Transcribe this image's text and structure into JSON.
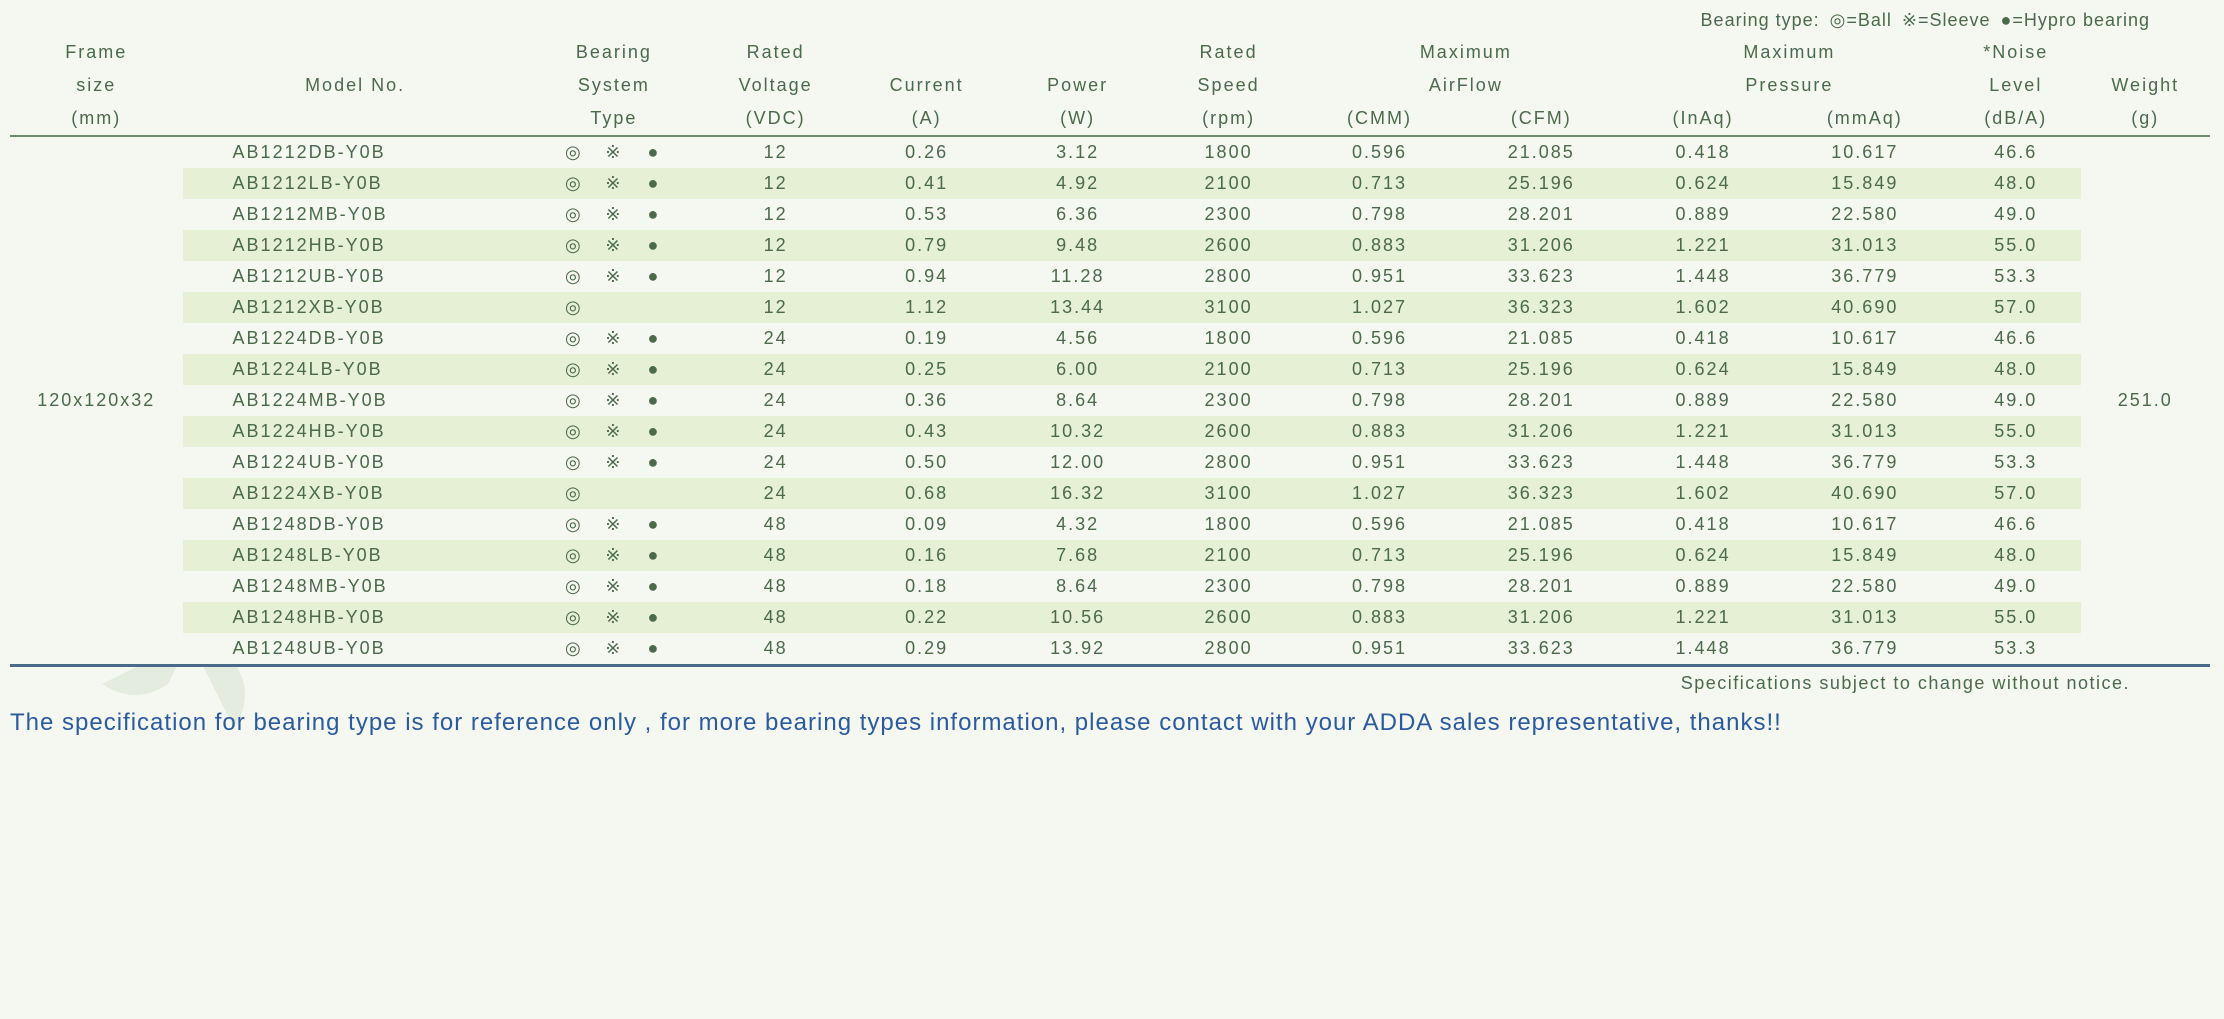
{
  "legend": {
    "prefix": "Bearing type:",
    "ball": "◎=Ball",
    "sleeve": "※=Sleeve",
    "hypro": "●=Hypro bearing"
  },
  "headers": {
    "frame1": "Frame",
    "frame2": "size",
    "frame3": "(mm)",
    "model": "Model No.",
    "bearing1": "Bearing",
    "bearing2": "System",
    "bearing3": "Type",
    "voltage1": "Rated",
    "voltage2": "Voltage",
    "voltage3": "(VDC)",
    "current1": "Current",
    "current2": "(A)",
    "power1": "Power",
    "power2": "(W)",
    "speed1": "Rated",
    "speed2": "Speed",
    "speed3": "(rpm)",
    "airflow1": "Maximum",
    "airflow2": "AirFlow",
    "cmm": "(CMM)",
    "cfm": "(CFM)",
    "pressure1": "Maximum",
    "pressure2": "Pressure",
    "inaq": "(InAq)",
    "mmaq": "(mmAq)",
    "noise1": "*Noise",
    "noise2": "Level",
    "noise3": "(dB/A)",
    "weight1": "Weight",
    "weight2": "(g)"
  },
  "frame_size": "120x120x32",
  "weight": "251.0",
  "rows": [
    {
      "model": "AB1212DB-Y0B",
      "ball": true,
      "sleeve": true,
      "hypro": true,
      "v": "12",
      "a": "0.26",
      "w": "3.12",
      "rpm": "1800",
      "cmm": "0.596",
      "cfm": "21.085",
      "inaq": "0.418",
      "mmaq": "10.617",
      "db": "46.6"
    },
    {
      "model": "AB1212LB-Y0B",
      "ball": true,
      "sleeve": true,
      "hypro": true,
      "v": "12",
      "a": "0.41",
      "w": "4.92",
      "rpm": "2100",
      "cmm": "0.713",
      "cfm": "25.196",
      "inaq": "0.624",
      "mmaq": "15.849",
      "db": "48.0"
    },
    {
      "model": "AB1212MB-Y0B",
      "ball": true,
      "sleeve": true,
      "hypro": true,
      "v": "12",
      "a": "0.53",
      "w": "6.36",
      "rpm": "2300",
      "cmm": "0.798",
      "cfm": "28.201",
      "inaq": "0.889",
      "mmaq": "22.580",
      "db": "49.0"
    },
    {
      "model": "AB1212HB-Y0B",
      "ball": true,
      "sleeve": true,
      "hypro": true,
      "v": "12",
      "a": "0.79",
      "w": "9.48",
      "rpm": "2600",
      "cmm": "0.883",
      "cfm": "31.206",
      "inaq": "1.221",
      "mmaq": "31.013",
      "db": "55.0"
    },
    {
      "model": "AB1212UB-Y0B",
      "ball": true,
      "sleeve": true,
      "hypro": true,
      "v": "12",
      "a": "0.94",
      "w": "11.28",
      "rpm": "2800",
      "cmm": "0.951",
      "cfm": "33.623",
      "inaq": "1.448",
      "mmaq": "36.779",
      "db": "53.3"
    },
    {
      "model": "AB1212XB-Y0B",
      "ball": true,
      "sleeve": false,
      "hypro": false,
      "v": "12",
      "a": "1.12",
      "w": "13.44",
      "rpm": "3100",
      "cmm": "1.027",
      "cfm": "36.323",
      "inaq": "1.602",
      "mmaq": "40.690",
      "db": "57.0"
    },
    {
      "model": "AB1224DB-Y0B",
      "ball": true,
      "sleeve": true,
      "hypro": true,
      "v": "24",
      "a": "0.19",
      "w": "4.56",
      "rpm": "1800",
      "cmm": "0.596",
      "cfm": "21.085",
      "inaq": "0.418",
      "mmaq": "10.617",
      "db": "46.6"
    },
    {
      "model": "AB1224LB-Y0B",
      "ball": true,
      "sleeve": true,
      "hypro": true,
      "v": "24",
      "a": "0.25",
      "w": "6.00",
      "rpm": "2100",
      "cmm": "0.713",
      "cfm": "25.196",
      "inaq": "0.624",
      "mmaq": "15.849",
      "db": "48.0"
    },
    {
      "model": "AB1224MB-Y0B",
      "ball": true,
      "sleeve": true,
      "hypro": true,
      "v": "24",
      "a": "0.36",
      "w": "8.64",
      "rpm": "2300",
      "cmm": "0.798",
      "cfm": "28.201",
      "inaq": "0.889",
      "mmaq": "22.580",
      "db": "49.0"
    },
    {
      "model": "AB1224HB-Y0B",
      "ball": true,
      "sleeve": true,
      "hypro": true,
      "v": "24",
      "a": "0.43",
      "w": "10.32",
      "rpm": "2600",
      "cmm": "0.883",
      "cfm": "31.206",
      "inaq": "1.221",
      "mmaq": "31.013",
      "db": "55.0"
    },
    {
      "model": "AB1224UB-Y0B",
      "ball": true,
      "sleeve": true,
      "hypro": true,
      "v": "24",
      "a": "0.50",
      "w": "12.00",
      "rpm": "2800",
      "cmm": "0.951",
      "cfm": "33.623",
      "inaq": "1.448",
      "mmaq": "36.779",
      "db": "53.3"
    },
    {
      "model": "AB1224XB-Y0B",
      "ball": true,
      "sleeve": false,
      "hypro": false,
      "v": "24",
      "a": "0.68",
      "w": "16.32",
      "rpm": "3100",
      "cmm": "1.027",
      "cfm": "36.323",
      "inaq": "1.602",
      "mmaq": "40.690",
      "db": "57.0"
    },
    {
      "model": "AB1248DB-Y0B",
      "ball": true,
      "sleeve": true,
      "hypro": true,
      "v": "48",
      "a": "0.09",
      "w": "4.32",
      "rpm": "1800",
      "cmm": "0.596",
      "cfm": "21.085",
      "inaq": "0.418",
      "mmaq": "10.617",
      "db": "46.6"
    },
    {
      "model": "AB1248LB-Y0B",
      "ball": true,
      "sleeve": true,
      "hypro": true,
      "v": "48",
      "a": "0.16",
      "w": "7.68",
      "rpm": "2100",
      "cmm": "0.713",
      "cfm": "25.196",
      "inaq": "0.624",
      "mmaq": "15.849",
      "db": "48.0"
    },
    {
      "model": "AB1248MB-Y0B",
      "ball": true,
      "sleeve": true,
      "hypro": true,
      "v": "48",
      "a": "0.18",
      "w": "8.64",
      "rpm": "2300",
      "cmm": "0.798",
      "cfm": "28.201",
      "inaq": "0.889",
      "mmaq": "22.580",
      "db": "49.0"
    },
    {
      "model": "AB1248HB-Y0B",
      "ball": true,
      "sleeve": true,
      "hypro": true,
      "v": "48",
      "a": "0.22",
      "w": "10.56",
      "rpm": "2600",
      "cmm": "0.883",
      "cfm": "31.206",
      "inaq": "1.221",
      "mmaq": "31.013",
      "db": "55.0"
    },
    {
      "model": "AB1248UB-Y0B",
      "ball": true,
      "sleeve": true,
      "hypro": true,
      "v": "48",
      "a": "0.29",
      "w": "13.92",
      "rpm": "2800",
      "cmm": "0.951",
      "cfm": "33.623",
      "inaq": "1.448",
      "mmaq": "36.779",
      "db": "53.3"
    }
  ],
  "notice": "Specifications subject to change without notice.",
  "footer": "The specification for bearing type is for reference only , for more bearing types information, please contact with your ADDA sales representative, thanks!!",
  "colors": {
    "text": "#4a6a4a",
    "even_row": "#e5f0d5",
    "odd_row": "#f5f8f0",
    "border_bottom": "#4a6a8a",
    "footer_text": "#2a5aa0"
  },
  "col_widths_pct": [
    8,
    16,
    8,
    7,
    7,
    7,
    7,
    7,
    8,
    7,
    8,
    6,
    6
  ]
}
